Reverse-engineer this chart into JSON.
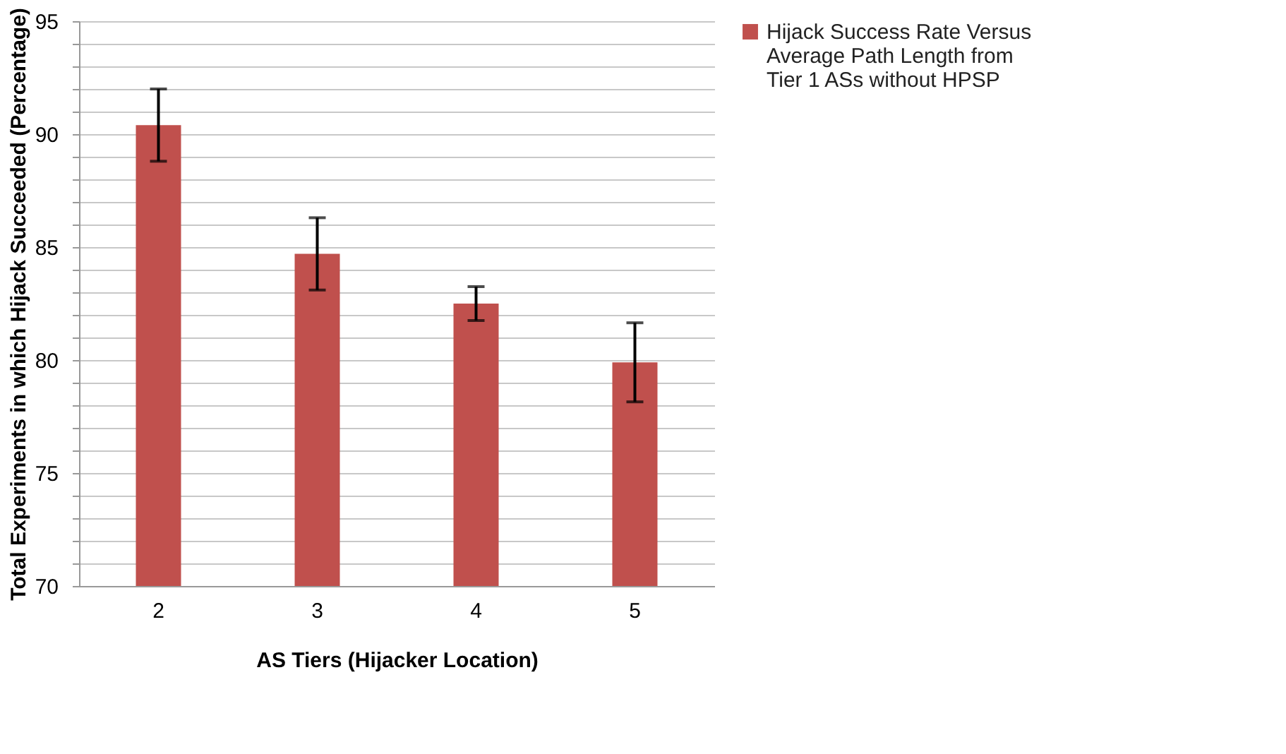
{
  "chart_data": {
    "type": "bar",
    "xlabel": "AS Tiers (Hijacker Location)",
    "ylabel": "Total Experiments in which Hijack Succeeded (Percentage)",
    "categories": [
      "2",
      "3",
      "4",
      "5"
    ],
    "series": [
      {
        "name": "Hijack Success Rate Versus Average Path Length from Tier 1 ASs without HPSP",
        "color": "#c0504d",
        "values": [
          90.4,
          84.7,
          82.5,
          79.9
        ],
        "errors": [
          1.6,
          1.6,
          0.75,
          1.75
        ]
      }
    ],
    "ylim": [
      70,
      95
    ],
    "yticks": [
      70,
      {
        "value": 71,
        "label": null
      },
      {
        "value": 72,
        "label": null
      },
      {
        "value": 73,
        "label": null
      },
      {
        "value": 74,
        "label": null
      },
      75,
      {
        "value": 76,
        "label": null
      },
      {
        "value": 77,
        "label": null
      },
      {
        "value": 78,
        "label": null
      },
      {
        "value": 79,
        "label": null
      },
      80,
      {
        "value": 81,
        "label": null
      },
      {
        "value": 82,
        "label": null
      },
      {
        "value": 83,
        "label": null
      },
      {
        "value": 84,
        "label": null
      },
      85,
      {
        "value": 86,
        "label": null
      },
      {
        "value": 87,
        "label": null
      },
      {
        "value": 88,
        "label": null
      },
      {
        "value": 89,
        "label": null
      },
      90,
      {
        "value": 91,
        "label": null
      },
      {
        "value": 92,
        "label": null
      },
      {
        "value": 93,
        "label": null
      },
      {
        "value": 94,
        "label": null
      },
      95
    ],
    "grid": "y",
    "legend": "right"
  }
}
